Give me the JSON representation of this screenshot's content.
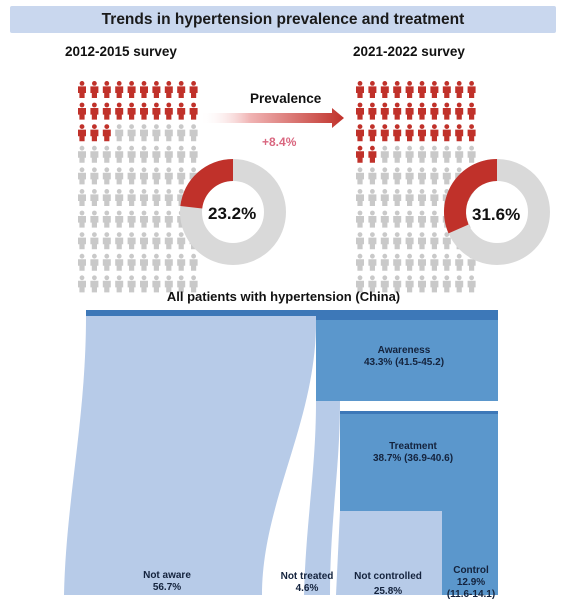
{
  "header": {
    "title": "Trends in hypertension prevalence and treatment"
  },
  "surveys": [
    {
      "label": "2012-2015 survey",
      "prevalence_pct": 23.2,
      "prevalence_text": "23.2%"
    },
    {
      "label": "2021-2022 survey",
      "prevalence_pct": 31.6,
      "prevalence_text": "31.6%"
    }
  ],
  "change": {
    "label": "Prevalence",
    "value_text": "+8.4%"
  },
  "sankey": {
    "title": "All patients with hypertension (China)",
    "nodes": {
      "awareness": {
        "label": "Awareness",
        "value": "43.3% (41.5-45.2)"
      },
      "treatment": {
        "label": "Treatment",
        "value": "38.7% (36.9-40.6)"
      },
      "not_aware": {
        "label": "Not aware",
        "value": "56.7%"
      },
      "not_treated": {
        "label": "Not treated",
        "value": "4.6%"
      },
      "not_controlled": {
        "label": "Not controlled",
        "value": "25.8%"
      },
      "control": {
        "label": "Control",
        "value": "12.9%",
        "ci": "(11.6-14.1)"
      }
    }
  },
  "colors": {
    "red": "#c0312a",
    "grey": "#c9c9c9",
    "donut_grey": "#d9d9d9",
    "light_flow": "#b7cbe8",
    "dark_node": "#5b97cc",
    "top_bar": "#3d78b8",
    "banner": "#c9d7ee"
  }
}
